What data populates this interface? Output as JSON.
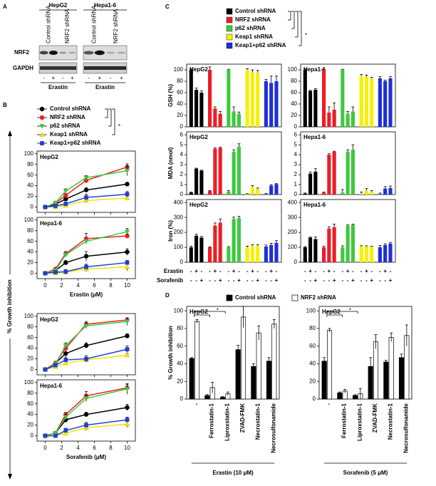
{
  "panel_labels": [
    "A",
    "B",
    "C",
    "D"
  ],
  "blot": {
    "cell_lines": [
      "HepG2",
      "Hepa1-6"
    ],
    "lanes": [
      "Control shRNA",
      "NRF2 shRNA"
    ],
    "rows": [
      "NRF2",
      "GAPDH"
    ],
    "signs": [
      "-",
      "+",
      "-",
      "+"
    ],
    "treatment": "Erastin"
  },
  "chart_data": [
    {
      "type": "line",
      "ylabel": "% Growth inhibition",
      "annotation": "*",
      "x": [
        0,
        1.25,
        2.5,
        5,
        10
      ],
      "xlim": [
        -1,
        11
      ],
      "xticks": [
        0,
        2,
        4,
        6,
        8,
        10
      ],
      "ylim": [
        -10,
        105
      ],
      "yticks": [
        0,
        20,
        40,
        60,
        80,
        100
      ],
      "series": [
        {
          "name": "Control shRNA",
          "color": "#000000",
          "marker": "circle"
        },
        {
          "name": "NRF2 shRNA",
          "color": "#ee1c25",
          "marker": "circle"
        },
        {
          "name": "p62 shRNA",
          "color": "#3ec93e",
          "marker": "triangle-down"
        },
        {
          "name": "Keap1 shRNA",
          "color": "#f2e600",
          "marker": "triangle-up"
        },
        {
          "name": "Keap1+p62 shRNA",
          "color": "#1f3fd6",
          "marker": "square"
        }
      ],
      "subplots": [
        {
          "title": "HepG2",
          "values": [
            [
              0,
              5,
              15,
              32,
              43
            ],
            [
              0,
              7,
              22,
              50,
              75
            ],
            [
              0,
              8,
              30,
              55,
              68
            ],
            [
              0,
              0,
              3,
              12,
              17
            ],
            [
              0,
              2,
              6,
              18,
              24
            ]
          ],
          "errors": [
            [
              1,
              2,
              3,
              4,
              3
            ],
            [
              1,
              2,
              3,
              5,
              6
            ],
            [
              1,
              2,
              4,
              4,
              9
            ],
            [
              1,
              2,
              3,
              4,
              4
            ],
            [
              1,
              2,
              3,
              6,
              5
            ]
          ]
        },
        {
          "title": "Hepa1-6",
          "xlabel": "Erastin (μM)",
          "values": [
            [
              0,
              5,
              20,
              32,
              40
            ],
            [
              0,
              8,
              37,
              65,
              70
            ],
            [
              0,
              5,
              35,
              60,
              78
            ],
            [
              0,
              0,
              2,
              8,
              12
            ],
            [
              0,
              2,
              3,
              12,
              20
            ]
          ],
          "errors": [
            [
              1,
              3,
              4,
              9,
              6
            ],
            [
              1,
              3,
              4,
              10,
              4
            ],
            [
              1,
              3,
              4,
              3,
              6
            ],
            [
              1,
              2,
              2,
              5,
              7
            ],
            [
              1,
              2,
              4,
              5,
              4
            ]
          ]
        },
        {
          "title": "HepG2",
          "values": [
            [
              0,
              12,
              30,
              45,
              63
            ],
            [
              0,
              12,
              40,
              85,
              93
            ],
            [
              0,
              10,
              45,
              82,
              90
            ],
            [
              0,
              5,
              12,
              18,
              27
            ],
            [
              0,
              8,
              18,
              20,
              38
            ]
          ],
          "errors": [
            [
              1,
              2,
              8,
              5,
              4
            ],
            [
              1,
              3,
              5,
              5,
              4
            ],
            [
              1,
              3,
              5,
              5,
              7
            ],
            [
              1,
              2,
              3,
              3,
              3
            ],
            [
              1,
              3,
              4,
              6,
              6
            ]
          ]
        },
        {
          "title": "Hepa1-6",
          "xlabel": "Sorafenib (μM)",
          "values": [
            [
              0,
              5,
              30,
              40,
              53
            ],
            [
              0,
              5,
              40,
              75,
              90
            ],
            [
              0,
              5,
              35,
              70,
              88
            ],
            [
              0,
              0,
              5,
              15,
              22
            ],
            [
              0,
              0,
              10,
              20,
              30
            ]
          ],
          "errors": [
            [
              1,
              2,
              5,
              4,
              6
            ],
            [
              1,
              2,
              4,
              8,
              6
            ],
            [
              1,
              3,
              5,
              6,
              10
            ],
            [
              1,
              2,
              3,
              5,
              6
            ],
            [
              1,
              2,
              4,
              5,
              5
            ]
          ]
        }
      ]
    },
    {
      "type": "bar",
      "annotation": "*",
      "series": [
        {
          "name": "Control shRNA",
          "color": "#000000"
        },
        {
          "name": "NRF2 shRNA",
          "color": "#ee1c25"
        },
        {
          "name": "p62 shRNA",
          "color": "#3ec93e"
        },
        {
          "name": "Keap1 shRNA",
          "color": "#f5f000"
        },
        {
          "name": "Keap1+p62 shRNA",
          "color": "#1f2fd6"
        }
      ],
      "treatments": [
        {
          "name": "Erastin",
          "signs": [
            "-",
            "+",
            "-",
            "-",
            "+",
            "-",
            "-",
            "+",
            "-",
            "-",
            "+",
            "-",
            "-",
            "+",
            "-"
          ]
        },
        {
          "name": "Sorafenib",
          "signs": [
            "-",
            "-",
            "+",
            "-",
            "-",
            "+",
            "-",
            "-",
            "+",
            "-",
            "-",
            "+",
            "-",
            "-",
            "+"
          ]
        }
      ],
      "rows": [
        {
          "ylabel": "GSH (%)",
          "ylim": [
            0,
            110
          ],
          "yticks": [
            0,
            20,
            40,
            60,
            80,
            100
          ],
          "subplots": [
            {
              "title": "HepG2",
              "values": [
                [
                  100,
                  65,
                  60
                ],
                [
                  100,
                  32,
                  23
                ],
                [
                  100,
                  27,
                  23
                ],
                [
                  100,
                  96,
                  95
                ],
                [
                  80,
                  77,
                  80
                ]
              ],
              "errors": [
                [
                  2,
                  3,
                  3
                ],
                [
                  5,
                  3,
                  4
                ],
                [
                  1,
                  8,
                  3
                ],
                [
                  2,
                  4,
                  4
                ],
                [
                  3,
                  12,
                  9
                ]
              ]
            },
            {
              "title": "Hepa1-6",
              "values": [
                [
                  100,
                  63,
                  65
                ],
                [
                  100,
                  25,
                  30
                ],
                [
                  100,
                  23,
                  27
                ],
                [
                  90,
                  88,
                  85
                ],
                [
                  85,
                  80,
                  85
                ]
              ],
              "errors": [
                [
                  2,
                  1,
                  2
                ],
                [
                  1,
                  10,
                  12
                ],
                [
                  1,
                  4,
                  8
                ],
                [
                  2,
                  3,
                  2
                ],
                [
                  3,
                  2,
                  3
                ]
              ]
            }
          ]
        },
        {
          "ylabel": "MDA (nmol)",
          "ylim": [
            0,
            6.3
          ],
          "yticks": [
            0,
            1,
            2,
            3,
            4,
            5,
            6
          ],
          "subplots": [
            {
              "title": "HepG2",
              "values": [
                [
                  0.2,
                  2.6,
                  2.4
                ],
                [
                  0.35,
                  4.6,
                  4.7
                ],
                [
                  0.3,
                  4.3,
                  4.8
                ],
                [
                  0.05,
                  0.75,
                  0.55
                ],
                [
                  0.05,
                  0.9,
                  1.05
                ]
              ],
              "errors": [
                [
                  0.05,
                  0.05,
                  0.05
                ],
                [
                  0.05,
                  0.1,
                  0.05
                ],
                [
                  0.1,
                  0.2,
                  0.3
                ],
                [
                  0.05,
                  0.15,
                  0.1
                ],
                [
                  0.05,
                  0.1,
                  0.05
                ]
              ]
            },
            {
              "title": "Hepa1-6",
              "values": [
                [
                  0.1,
                  2.1,
                  2.3
                ],
                [
                  0.2,
                  4.0,
                  4.3
                ],
                [
                  0.2,
                  4.3,
                  4.5
                ],
                [
                  0.05,
                  0.4,
                  0.3
                ],
                [
                  0.05,
                  0.6,
                  0.65
                ]
              ],
              "errors": [
                [
                  0.05,
                  0.15,
                  0.3
                ],
                [
                  0.05,
                  0.1,
                  0.05
                ],
                [
                  0.3,
                  0.2,
                  0.5
                ],
                [
                  0.2,
                  0.2,
                  0.1
                ],
                [
                  0.1,
                  0.2,
                  0.2
                ]
              ]
            }
          ]
        },
        {
          "ylabel": "Iron (%)",
          "ylim": [
            0,
            420
          ],
          "yticks": [
            0,
            100,
            200,
            300,
            400
          ],
          "subplots": [
            {
              "title": "HepG2",
              "values": [
                [
                  100,
                  178,
                  165
                ],
                [
                  100,
                  245,
                  265
                ],
                [
                  100,
                  290,
                  295
                ],
                [
                  100,
                  110,
                  110
                ],
                [
                  105,
                  115,
                  130
                ]
              ],
              "errors": [
                [
                  8,
                  10,
                  8
                ],
                [
                  3,
                  18,
                  25
                ],
                [
                  5,
                  12,
                  12
                ],
                [
                  8,
                  8,
                  8
                ],
                [
                  10,
                  12,
                  15
                ]
              ]
            },
            {
              "title": "Hepa1-6",
              "values": [
                [
                  100,
                  165,
                  155
                ],
                [
                  100,
                  225,
                  235
                ],
                [
                  100,
                  245,
                  252
                ],
                [
                  108,
                  107,
                  105
                ],
                [
                  100,
                  115,
                  125
                ]
              ],
              "errors": [
                [
                  5,
                  3,
                  15
                ],
                [
                  8,
                  12,
                  20
                ],
                [
                  10,
                  5,
                  3
                ],
                [
                  3,
                  3,
                  3
                ],
                [
                  12,
                  8,
                  8
                ]
              ]
            }
          ]
        }
      ]
    },
    {
      "type": "grouped_bar",
      "ylabel": "% Growth inhibition",
      "annotation": "*",
      "categories": [
        "-",
        "Ferrostatin-1",
        "Liproxstatin-1",
        "ZVAD-FMK",
        "Necrostatin-1",
        "Necrosulfonamide"
      ],
      "ylim": [
        0,
        105
      ],
      "yticks": [
        0,
        20,
        40,
        60,
        80,
        100
      ],
      "series": [
        {
          "name": "Control shRNA",
          "color": "#000000"
        },
        {
          "name": "NRF2 shRNA",
          "color": "#ffffff"
        }
      ],
      "subplots": [
        {
          "title": "HepG2",
          "xlabel": "Erastin (10 μM)",
          "values": [
            [
              46,
              4,
              2,
              56,
              37,
              43
            ],
            [
              88,
              13,
              6,
              93,
              75,
              85
            ]
          ],
          "errors": [
            [
              1,
              1,
              1,
              5,
              3,
              4
            ],
            [
              2,
              6,
              2,
              12,
              8,
              5
            ]
          ]
        },
        {
          "title": "HepG2",
          "xlabel": "Sorafenib (5 μM)",
          "values": [
            [
              43,
              7,
              4,
              37,
              42,
              47
            ],
            [
              78,
              9,
              6,
              65,
              70,
              72
            ]
          ],
          "errors": [
            [
              4,
              1,
              1,
              10,
              2,
              4
            ],
            [
              2,
              2,
              6,
              8,
              5,
              12
            ]
          ]
        }
      ]
    }
  ]
}
